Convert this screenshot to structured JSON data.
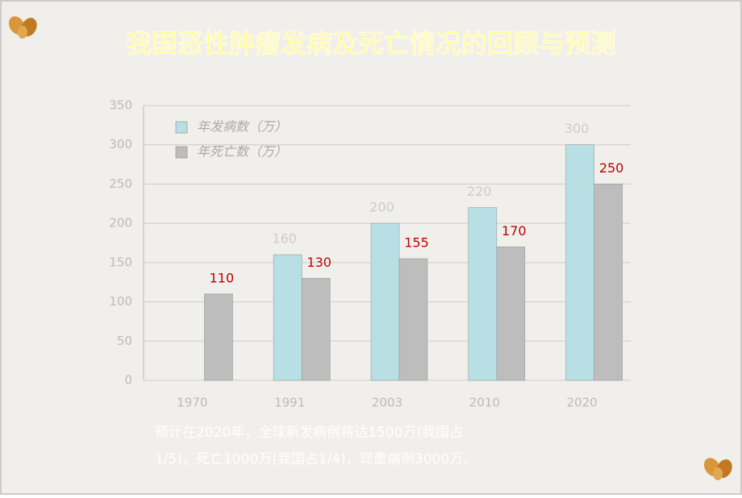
{
  "chart_data": {
    "type": "bar",
    "title": "我国恶性肿瘤发病及死亡情况的回顾与预测",
    "categories": [
      "1970",
      "1991",
      "2003",
      "2010",
      "2020"
    ],
    "series": [
      {
        "name": "年发病数（万）",
        "color": "#b8e0e4",
        "label_color": "#cccccc",
        "values": [
          null,
          160,
          200,
          220,
          300
        ]
      },
      {
        "name": "年死亡数（万）",
        "color": "#bdbdbd",
        "label_color": "#c00000",
        "values": [
          110,
          130,
          155,
          170,
          250
        ]
      }
    ],
    "ylim": [
      0,
      350
    ],
    "yticks": [
      0,
      50,
      100,
      150,
      200,
      250,
      300,
      350
    ],
    "grid": true,
    "note": [
      "预计在2020年，全球新发病例将达1500万(我国占",
      "1/5)，死亡1000万(我国占1/4)，现患病例3000万。"
    ]
  }
}
